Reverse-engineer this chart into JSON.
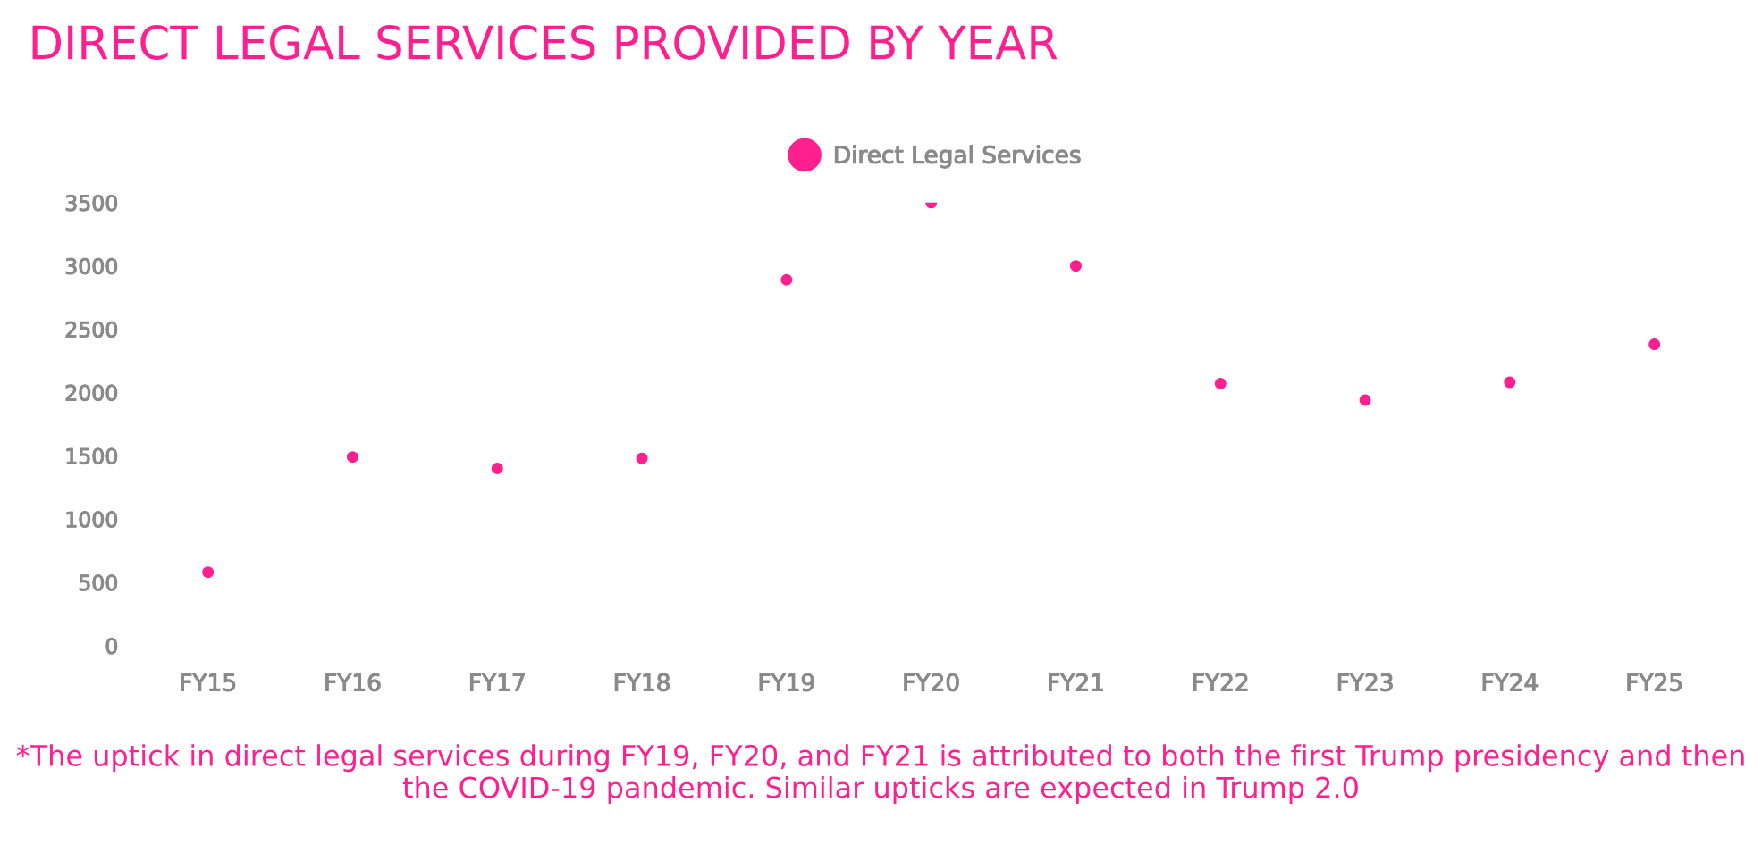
{
  "chart_data": {
    "type": "scatter",
    "title": "DIRECT LEGAL SERVICES PROVIDED BY YEAR",
    "categories": [
      "FY15",
      "FY16",
      "FY17",
      "FY18",
      "FY19",
      "FY20",
      "FY21",
      "FY22",
      "FY23",
      "FY24",
      "FY25"
    ],
    "series": [
      {
        "name": "Direct Legal Services",
        "color": "#ff1f8e",
        "values": [
          580,
          1490,
          1400,
          1480,
          2890,
          3500,
          3000,
          2070,
          1940,
          2080,
          2380
        ]
      }
    ],
    "ylim": [
      0,
      3500
    ],
    "yticks": [
      0,
      500,
      1000,
      1500,
      2000,
      2500,
      3000,
      3500
    ],
    "grid": false,
    "legend": "top",
    "marker": "circle",
    "annotations": [
      "*The uptick in direct legal services during FY19, FY20, and FY21 is attributed to both the first Trump presidency and then the COVID-19 pandemic. Similar upticks are expected in Trump 2.0"
    ]
  }
}
